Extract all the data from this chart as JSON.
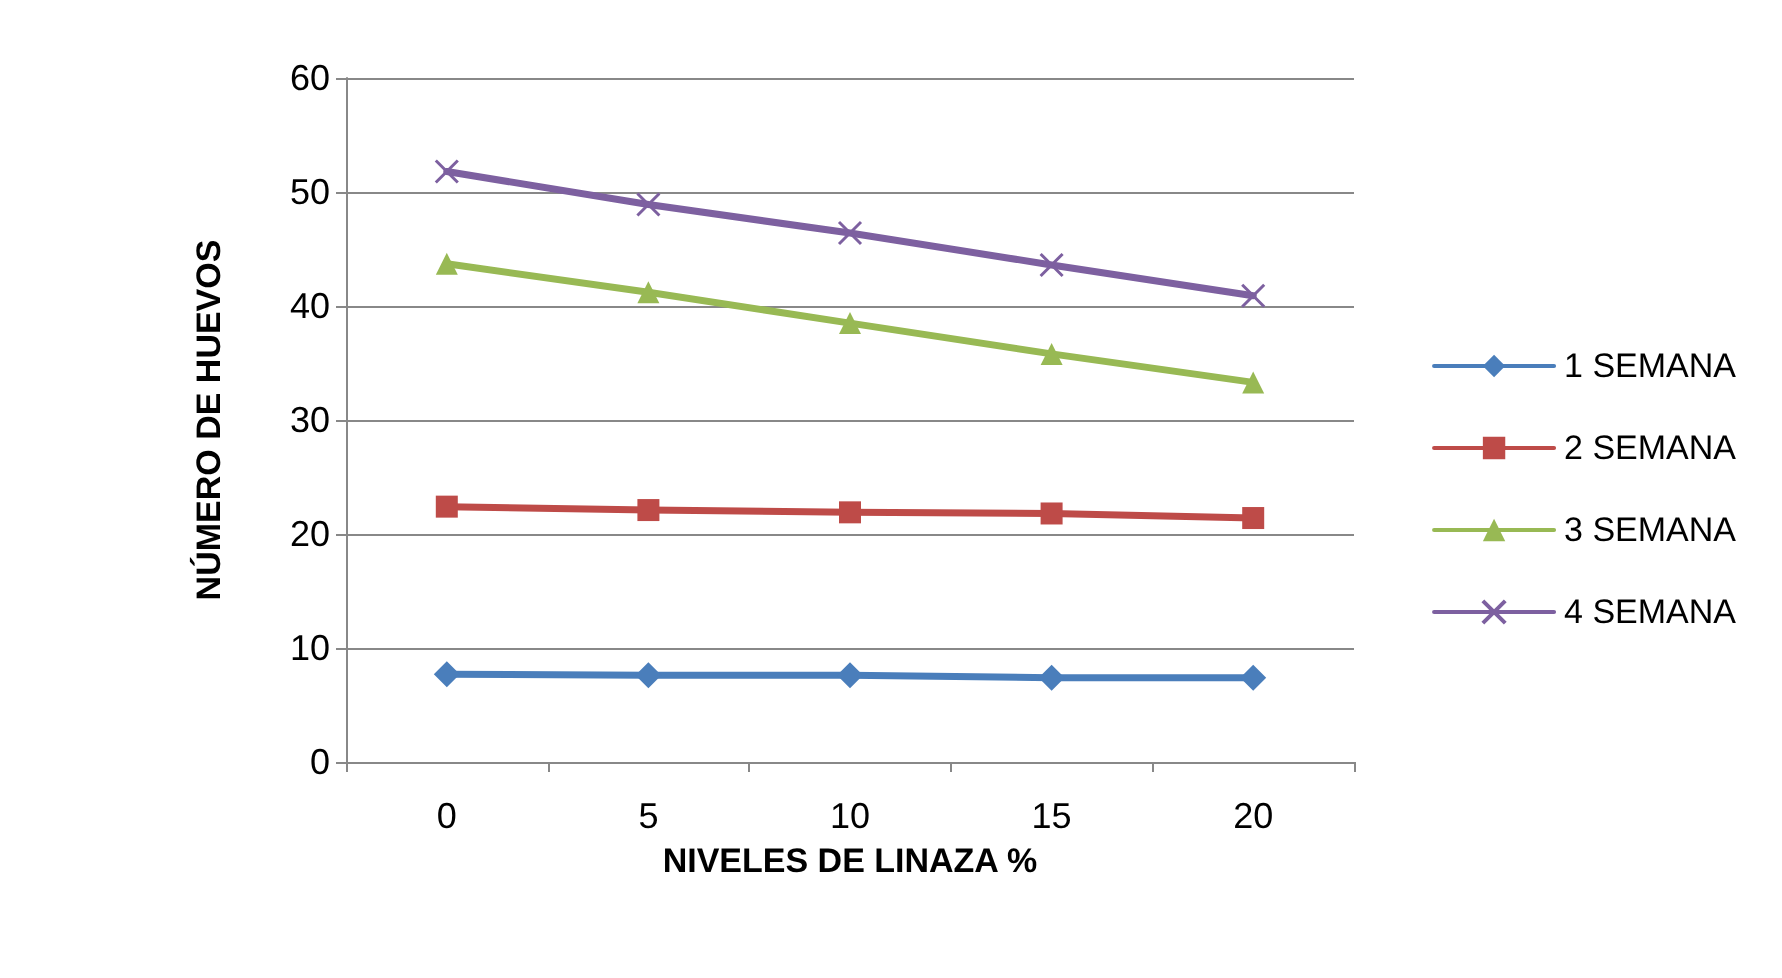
{
  "chart_data": {
    "type": "line",
    "xlabel": "NIVELES DE LINAZA %",
    "ylabel": "NÚMERO DE HUEVOS",
    "categories": [
      "0",
      "5",
      "10",
      "15",
      "20"
    ],
    "ylim": [
      0,
      60
    ],
    "yticks": [
      0,
      10,
      20,
      30,
      40,
      50,
      60
    ],
    "grid": "y",
    "legend": "right",
    "series": [
      {
        "name": "1 SEMANA",
        "color": "#4a7ebb",
        "marker": "diamond",
        "values": [
          7.7,
          7.6,
          7.6,
          7.4,
          7.4
        ]
      },
      {
        "name": "2 SEMANA",
        "color": "#be4b48",
        "marker": "square",
        "values": [
          22.4,
          22.1,
          21.9,
          21.8,
          21.4
        ]
      },
      {
        "name": "3 SEMANA",
        "color": "#98b954",
        "marker": "triangle",
        "values": [
          43.7,
          41.2,
          38.5,
          35.8,
          33.3
        ]
      },
      {
        "name": "4 SEMANA",
        "color": "#7d60a0",
        "marker": "cross",
        "values": [
          51.8,
          48.9,
          46.4,
          43.6,
          40.9
        ]
      }
    ]
  }
}
